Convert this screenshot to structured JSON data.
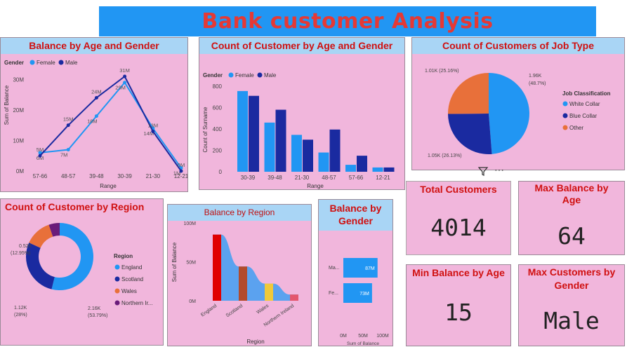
{
  "header": {
    "title": "Bank customer Analysis"
  },
  "colors": {
    "female": "#2196f3",
    "male": "#1a2aa0",
    "orange": "#e8703a",
    "purple": "#6a1b7a"
  },
  "charts": {
    "age_gender_line": {
      "title": "Balance by Age and Gender",
      "legend_title": "Gender",
      "series_names": [
        "Female",
        "Male"
      ],
      "xlabel": "Range",
      "ylabel": "Sum of Balance",
      "yticks": [
        "0M",
        "10M",
        "20M",
        "30M"
      ],
      "data_labels_female": [
        "6M",
        "7M",
        "18M",
        "29M",
        "14M",
        "1M"
      ],
      "data_labels_male": [
        "5M",
        "15M",
        "24M",
        "31M",
        "13M",
        "0M"
      ]
    },
    "age_gender_bar": {
      "title": "Count of Customer by Age and Gender",
      "legend_title": "Gender",
      "series_names": [
        "Female",
        "Male"
      ],
      "xlabel": "Range",
      "ylabel": "Count of Surname",
      "yticks": [
        "0",
        "200",
        "400",
        "600",
        "800"
      ]
    },
    "job_pie": {
      "title": "Count of Customers of Job Type",
      "legend_title": "Job Classification",
      "legend": [
        "White Collar",
        "Blue Collar",
        "Other"
      ],
      "labels": [
        {
          "a": "1.96K",
          "b": "(48.7%)"
        },
        {
          "a": "1.05K (26.13%)",
          "b": ""
        },
        {
          "a": "1.01K (25.16%)",
          "b": ""
        }
      ]
    },
    "region_donut": {
      "title": "Count of Customer by Region",
      "legend_title": "Region",
      "legend": [
        "England",
        "Scotland",
        "Wales",
        "Northern Ir..."
      ],
      "labels": [
        {
          "a": "2.16K",
          "b": "(53.79%)"
        },
        {
          "a": "1.12K",
          "b": "(28%)"
        },
        {
          "a": "0.52K",
          "b": "(12.95%)"
        }
      ]
    },
    "region_balance": {
      "title": "Balance by Region",
      "xlabel": "Region",
      "ylabel": "Sum of Balance",
      "yticks": [
        "0M",
        "50M",
        "100M"
      ]
    },
    "gender_balance": {
      "title": "Balance by Gender",
      "xlabel": "Sum of Balance",
      "xticks": [
        "0M",
        "50M",
        "100M"
      ],
      "categories": [
        "Ma...",
        "Fe..."
      ],
      "labels": [
        "87M",
        "73M"
      ]
    }
  },
  "cards": {
    "total_customers": {
      "title": "Total Customers",
      "value": "4014"
    },
    "max_balance_age": {
      "title": "Max Balance by Age",
      "value": "64"
    },
    "min_balance_age": {
      "title": "Min Balance by Age",
      "value": "15"
    },
    "max_customers_gender": {
      "title": "Max Customers by Gender",
      "value": "Male"
    }
  },
  "chart_data": [
    {
      "type": "line",
      "title": "Balance by Age and Gender",
      "categories": [
        "57-66",
        "48-57",
        "39-48",
        "30-39",
        "21-30",
        "12-21"
      ],
      "series": [
        {
          "name": "Female",
          "values": [
            6,
            7,
            18,
            29,
            14,
            1
          ]
        },
        {
          "name": "Male",
          "values": [
            5,
            15,
            24,
            31,
            13,
            0
          ]
        }
      ],
      "xlabel": "Range",
      "ylabel": "Sum of Balance",
      "ylim": [
        0,
        32
      ],
      "legend": "top-left"
    },
    {
      "type": "bar",
      "title": "Count of Customer by Age and Gender",
      "categories": [
        "30-39",
        "39-48",
        "21-30",
        "48-57",
        "57-66",
        "12-21"
      ],
      "series": [
        {
          "name": "Female",
          "values": [
            755,
            460,
            345,
            180,
            65,
            40
          ]
        },
        {
          "name": "Male",
          "values": [
            710,
            580,
            300,
            395,
            150,
            40
          ]
        }
      ],
      "xlabel": "Range",
      "ylabel": "Count of Surname",
      "ylim": [
        0,
        850
      ],
      "legend": "top-left"
    },
    {
      "type": "pie",
      "title": "Count of Customers of Job Type",
      "categories": [
        "White Collar",
        "Blue Collar",
        "Other"
      ],
      "values": [
        1960,
        1050,
        1010
      ],
      "percent": [
        48.7,
        26.13,
        25.16
      ]
    },
    {
      "type": "pie",
      "title": "Count of Customer by Region",
      "categories": [
        "England",
        "Scotland",
        "Wales",
        "Northern Ireland"
      ],
      "values": [
        2160,
        1120,
        520,
        210
      ],
      "percent": [
        53.79,
        28,
        12.95,
        5.26
      ]
    },
    {
      "type": "area",
      "title": "Balance by Region",
      "categories": [
        "England",
        "Scotland",
        "Wales",
        "Northern Ireland"
      ],
      "values": [
        85,
        44,
        22,
        8
      ],
      "xlabel": "Region",
      "ylabel": "Sum of Balance",
      "ylim": [
        0,
        100
      ]
    },
    {
      "type": "bar",
      "title": "Balance by Gender",
      "categories": [
        "Ma...",
        "Fe..."
      ],
      "values": [
        87,
        73
      ],
      "xlabel": "Sum of Balance",
      "xlim": [
        0,
        100
      ]
    }
  ]
}
